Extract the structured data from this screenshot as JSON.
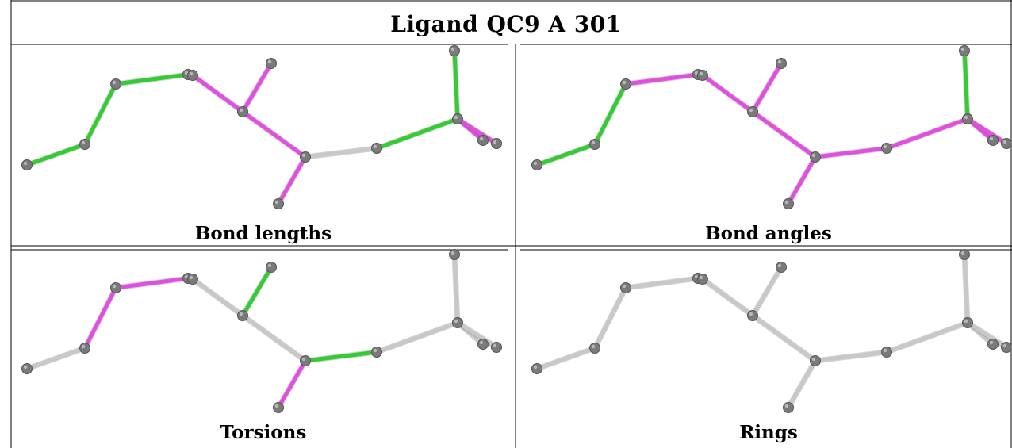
{
  "title": "Ligand QC9 A 301",
  "panels": [
    {
      "id": "bond-lengths",
      "caption": "Bond lengths"
    },
    {
      "id": "bond-angles",
      "caption": "Bond angles"
    },
    {
      "id": "torsions",
      "caption": "Torsions"
    },
    {
      "id": "rings",
      "caption": "Rings"
    }
  ],
  "colors": {
    "good": "#33cc33",
    "outlier": "#e14fe1",
    "neutral": "#c8c8c8",
    "atom": "#7a7a7a",
    "border": "#000000"
  },
  "bond_status": {
    "bond-lengths": [
      "good",
      "good",
      "good",
      "outlier",
      "outlier",
      "outlier",
      "outlier",
      "outlier",
      "neutral",
      "good",
      "good",
      "outlier",
      "outlier"
    ],
    "bond-angles": [
      "good",
      "good",
      "outlier",
      "outlier",
      "outlier",
      "outlier",
      "outlier",
      "outlier",
      "outlier",
      "outlier",
      "good",
      "outlier",
      "outlier"
    ],
    "torsions": [
      "neutral",
      "outlier",
      "outlier",
      "outlier",
      "neutral",
      "good",
      "neutral",
      "outlier",
      "good",
      "neutral",
      "neutral",
      "neutral",
      "neutral"
    ],
    "rings": [
      "neutral",
      "neutral",
      "neutral",
      "neutral",
      "neutral",
      "neutral",
      "neutral",
      "neutral",
      "neutral",
      "neutral",
      "neutral",
      "neutral",
      "neutral"
    ]
  }
}
